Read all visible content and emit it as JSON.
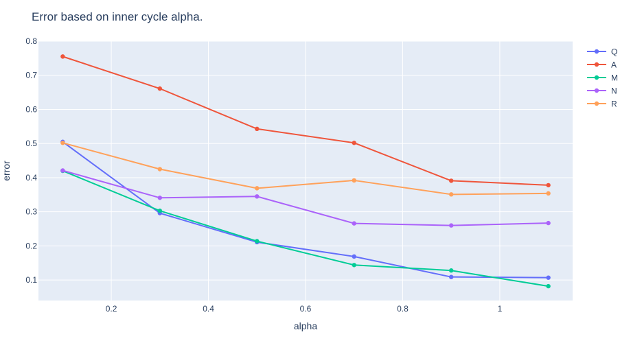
{
  "chart_data": {
    "type": "line",
    "title": "Error based on inner cycle alpha.",
    "xlabel": "alpha",
    "ylabel": "error",
    "xlim": [
      0.05,
      1.15
    ],
    "ylim": [
      0.04,
      0.8
    ],
    "x_ticks": [
      0.2,
      0.4,
      0.6,
      0.8,
      1.0
    ],
    "x_tick_labels": [
      "0.2",
      "0.4",
      "0.6",
      "0.8",
      "1"
    ],
    "y_ticks": [
      0.1,
      0.2,
      0.3,
      0.4,
      0.5,
      0.6,
      0.7,
      0.8
    ],
    "y_tick_labels": [
      "0.1",
      "0.2",
      "0.3",
      "0.4",
      "0.5",
      "0.6",
      "0.7",
      "0.8"
    ],
    "grid": true,
    "legend_position": "top-right",
    "x": [
      0.1,
      0.3,
      0.5,
      0.7,
      0.9,
      1.1
    ],
    "series": [
      {
        "name": "Q",
        "color": "#636efa",
        "values": [
          0.505,
          0.296,
          0.211,
          0.169,
          0.109,
          0.107
        ]
      },
      {
        "name": "A",
        "color": "#ef553b",
        "values": [
          0.755,
          0.661,
          0.543,
          0.502,
          0.391,
          0.378
        ]
      },
      {
        "name": "M",
        "color": "#00cc96",
        "values": [
          0.42,
          0.303,
          0.214,
          0.144,
          0.128,
          0.082
        ]
      },
      {
        "name": "N",
        "color": "#ab63fa",
        "values": [
          0.421,
          0.341,
          0.345,
          0.266,
          0.26,
          0.267
        ]
      },
      {
        "name": "R",
        "color": "#ffa15a",
        "values": [
          0.502,
          0.425,
          0.369,
          0.392,
          0.351,
          0.354
        ]
      }
    ]
  }
}
